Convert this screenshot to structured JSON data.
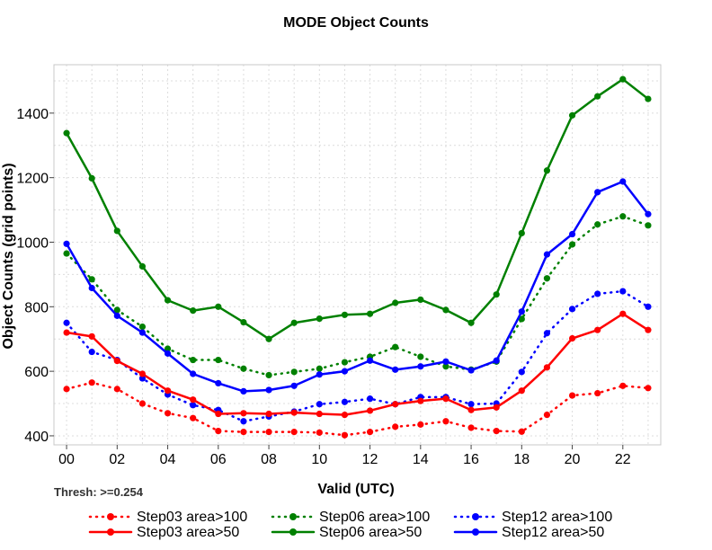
{
  "chart_data": {
    "type": "line",
    "title": "MODE Object Counts",
    "xlabel": "Valid (UTC)",
    "ylabel": "Object Counts (grid points)",
    "annotation": "Thresh: >=0.254",
    "xlim": [
      -0.5,
      23.5
    ],
    "ylim": [
      372,
      1550
    ],
    "x": [
      0,
      1,
      2,
      3,
      4,
      5,
      6,
      7,
      8,
      9,
      10,
      11,
      12,
      13,
      14,
      15,
      16,
      17,
      18,
      19,
      20,
      21,
      22,
      23
    ],
    "x_ticks": [
      0,
      2,
      4,
      6,
      8,
      10,
      12,
      14,
      16,
      18,
      20,
      22
    ],
    "x_tick_labels": [
      "00",
      "02",
      "04",
      "06",
      "08",
      "10",
      "12",
      "14",
      "16",
      "18",
      "20",
      "22"
    ],
    "y_ticks": [
      400,
      600,
      800,
      1000,
      1200,
      1400
    ],
    "y_tick_labels": [
      "400",
      "600",
      "800",
      "1000",
      "1200",
      "1400"
    ],
    "grid": true,
    "legend_position": "bottom",
    "series": [
      {
        "name": "Step03 area>100",
        "color": "#ff0000",
        "dash": "dotted",
        "values": [
          545,
          565,
          545,
          500,
          470,
          455,
          415,
          412,
          412,
          412,
          410,
          402,
          412,
          428,
          435,
          445,
          425,
          415,
          413,
          465,
          525,
          532,
          555,
          548
        ]
      },
      {
        "name": "Step06 area>100",
        "color": "#008000",
        "dash": "dotted",
        "values": [
          965,
          885,
          790,
          738,
          670,
          635,
          635,
          608,
          588,
          598,
          608,
          628,
          645,
          675,
          645,
          615,
          605,
          630,
          762,
          888,
          993,
          1055,
          1080,
          1052
        ]
      },
      {
        "name": "Step12 area>100",
        "color": "#0000ff",
        "dash": "dotted",
        "values": [
          750,
          660,
          635,
          578,
          528,
          495,
          480,
          445,
          460,
          475,
          498,
          505,
          515,
          498,
          520,
          520,
          498,
          500,
          598,
          718,
          793,
          840,
          848,
          800
        ]
      },
      {
        "name": "Step03 area>50",
        "color": "#ff0000",
        "dash": "solid",
        "values": [
          720,
          708,
          632,
          592,
          540,
          512,
          468,
          470,
          468,
          472,
          468,
          465,
          478,
          498,
          508,
          515,
          480,
          488,
          540,
          612,
          702,
          728,
          778,
          728
        ]
      },
      {
        "name": "Step06 area>50",
        "color": "#008000",
        "dash": "solid",
        "values": [
          1338,
          1198,
          1035,
          925,
          820,
          788,
          800,
          752,
          700,
          750,
          763,
          775,
          778,
          812,
          822,
          790,
          750,
          838,
          1028,
          1222,
          1393,
          1452,
          1505,
          1444
        ]
      },
      {
        "name": "Step12 area>50",
        "color": "#0000ff",
        "dash": "solid",
        "values": [
          995,
          858,
          772,
          720,
          655,
          592,
          563,
          538,
          542,
          555,
          590,
          600,
          633,
          605,
          615,
          630,
          603,
          633,
          785,
          962,
          1025,
          1155,
          1188,
          1087
        ]
      }
    ]
  }
}
